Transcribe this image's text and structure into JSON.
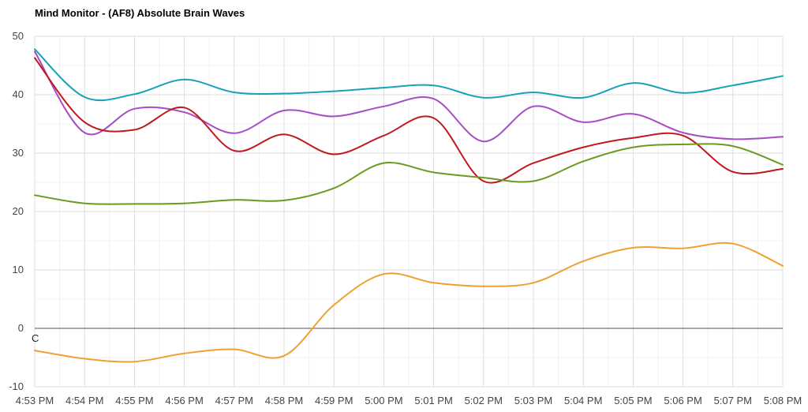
{
  "chart_data": {
    "type": "line",
    "title": "Mind Monitor - (AF8) Absolute Brain Waves",
    "xlabel": "",
    "ylabel": "",
    "categories": [
      "4:53 PM",
      "4:54 PM",
      "4:55 PM",
      "4:56 PM",
      "4:57 PM",
      "4:58 PM",
      "4:59 PM",
      "5:00 PM",
      "5:01 PM",
      "5:02 PM",
      "5:03 PM",
      "5:04 PM",
      "5:05 PM",
      "5:06 PM",
      "5:07 PM",
      "5:08 PM"
    ],
    "ylim": [
      -10,
      50
    ],
    "yticks": [
      -10,
      0,
      10,
      20,
      30,
      40,
      50
    ],
    "grid": true,
    "legend": "none",
    "zero_marker": "C",
    "series": [
      {
        "color": "#17a2b8",
        "values": [
          47.8,
          39.6,
          40.1,
          42.6,
          40.4,
          40.2,
          40.6,
          41.2,
          41.6,
          39.5,
          40.4,
          39.5,
          42.0,
          40.3,
          41.6,
          43.2
        ]
      },
      {
        "color": "#a64cc7",
        "values": [
          47.4,
          33.5,
          37.6,
          37.0,
          33.4,
          37.3,
          36.3,
          38.0,
          39.3,
          32.0,
          38.0,
          35.3,
          36.7,
          33.5,
          32.4,
          32.8
        ]
      },
      {
        "color": "#c0181f",
        "values": [
          46.3,
          35.3,
          34.0,
          37.8,
          30.4,
          33.2,
          29.8,
          33.0,
          36.0,
          25.2,
          28.3,
          31.0,
          32.6,
          33.0,
          26.8,
          27.3
        ]
      },
      {
        "color": "#6b9a1f",
        "values": [
          22.8,
          21.4,
          21.3,
          21.4,
          22.0,
          21.9,
          24.0,
          28.3,
          26.7,
          25.8,
          25.2,
          28.6,
          31.0,
          31.5,
          31.2,
          28.0
        ]
      },
      {
        "color": "#f0a030",
        "values": [
          -3.8,
          -5.2,
          -5.7,
          -4.3,
          -3.6,
          -4.7,
          4.0,
          9.3,
          7.8,
          7.2,
          7.8,
          11.5,
          13.8,
          13.7,
          14.5,
          10.7
        ]
      }
    ]
  }
}
